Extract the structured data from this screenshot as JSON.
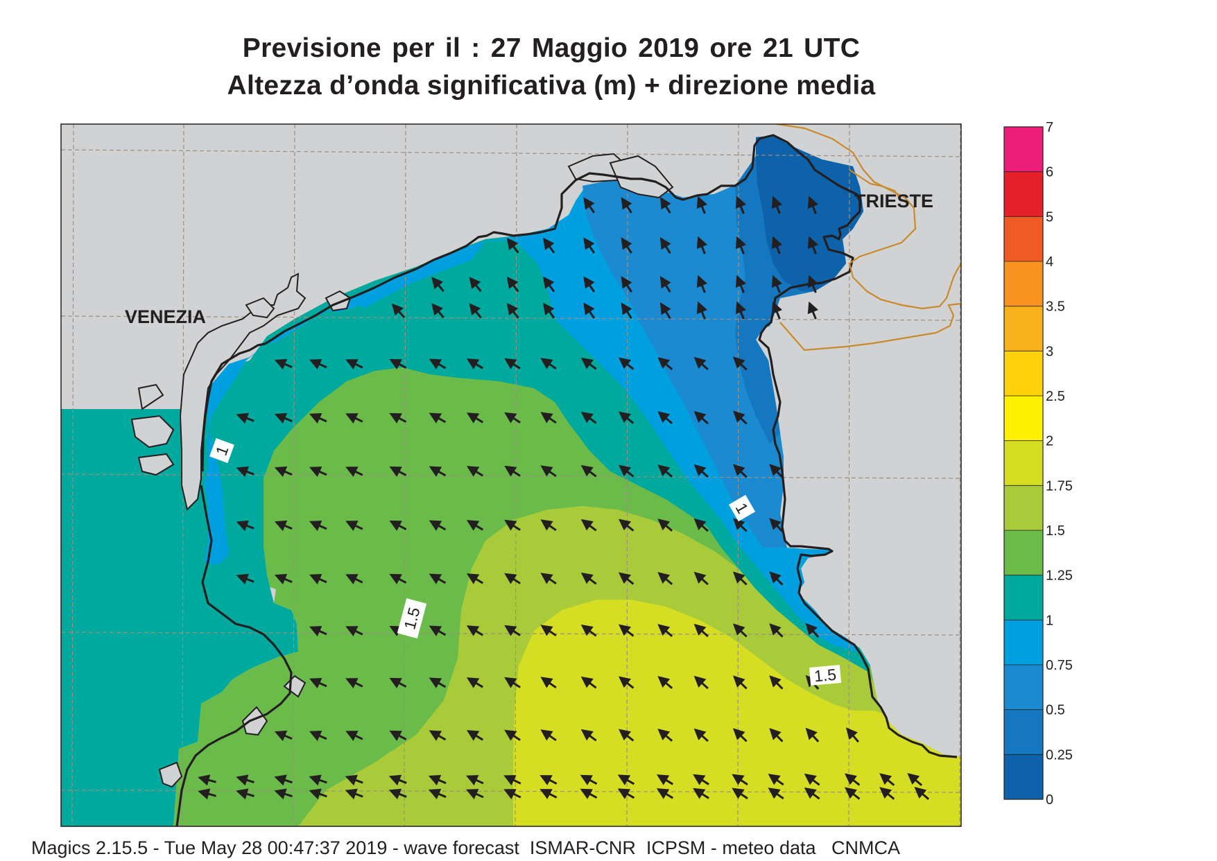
{
  "title": {
    "line1": "Previsione per il  :  27   Maggio  2019   ore 21 UTC",
    "line2": "Altezza d’onda significativa (m) + direzione media"
  },
  "map": {
    "cities": {
      "venezia": "VENEZIA",
      "trieste": "TRIESTE"
    },
    "contour_labels": {
      "west_1": "1",
      "east_1": "1",
      "center_1_5": "1.5",
      "east_1_5": "1.5"
    },
    "wave_direction": "north-west",
    "colors": {
      "land": "#d1d2d4",
      "border": "#c88a2a",
      "grid": "#9c8f80",
      "coastline": "#231f20",
      "arrow": "#231f20"
    }
  },
  "legend": {
    "labels": [
      "7",
      "6",
      "5",
      "4",
      "3.5",
      "3",
      "2.5",
      "2",
      "1.75",
      "1.5",
      "1.25",
      "1",
      "0.75",
      "0.5",
      "0.25",
      "0"
    ],
    "colors": [
      "#ed1e79",
      "#e5202a",
      "#f05a24",
      "#f7931e",
      "#f9b11a",
      "#fdd10c",
      "#fff200",
      "#d6de23",
      "#a9cb39",
      "#6bbb4a",
      "#00a99d",
      "#00a0e0",
      "#1b8ad0",
      "#1577bf",
      "#0d62aa"
    ]
  },
  "footer": "Magics 2.15.5 - Tue May 28 00:47:37 2019 - wave forecast  ISMAR-CNR  ICPSM - meteo data   CNMCA"
}
